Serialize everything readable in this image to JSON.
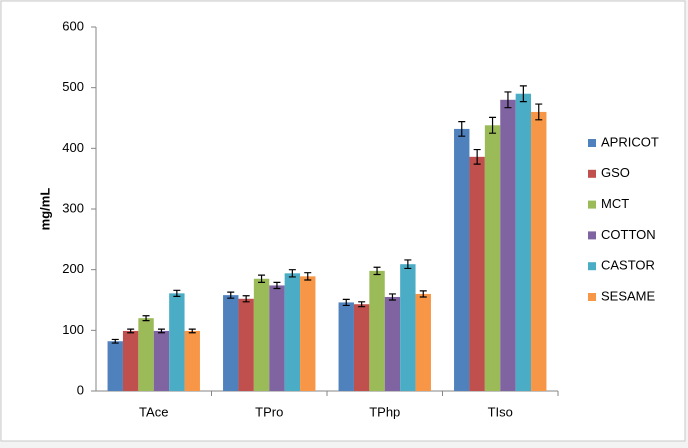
{
  "chart_data": {
    "type": "bar",
    "y_label": "mg/mL",
    "categories": [
      "TAce",
      "TPro",
      "TPhp",
      "TIso"
    ],
    "series": [
      {
        "name": "APRICOT",
        "color": "#4f81bd",
        "values": [
          82,
          158,
          146,
          432
        ],
        "errors": [
          3,
          5,
          5,
          12
        ]
      },
      {
        "name": "GSO",
        "color": "#c0504d",
        "values": [
          99,
          152,
          143,
          386
        ],
        "errors": [
          3,
          5,
          4,
          12
        ]
      },
      {
        "name": "MCT",
        "color": "#9bbb59",
        "values": [
          120,
          185,
          198,
          438
        ],
        "errors": [
          4,
          6,
          6,
          13
        ]
      },
      {
        "name": "COTTON",
        "color": "#8064a2",
        "values": [
          99,
          174,
          155,
          480
        ],
        "errors": [
          3,
          5,
          5,
          13
        ]
      },
      {
        "name": "CASTOR",
        "color": "#4bacc6",
        "values": [
          161,
          194,
          209,
          490
        ],
        "errors": [
          5,
          6,
          7,
          13
        ]
      },
      {
        "name": "SESAME",
        "color": "#f79646",
        "values": [
          99,
          189,
          160,
          460
        ],
        "errors": [
          3,
          6,
          5,
          13
        ]
      }
    ],
    "ylim": [
      0,
      600
    ],
    "yticks": [
      0,
      100,
      200,
      300,
      400,
      500,
      600
    ],
    "grid": false,
    "legend": "right"
  }
}
